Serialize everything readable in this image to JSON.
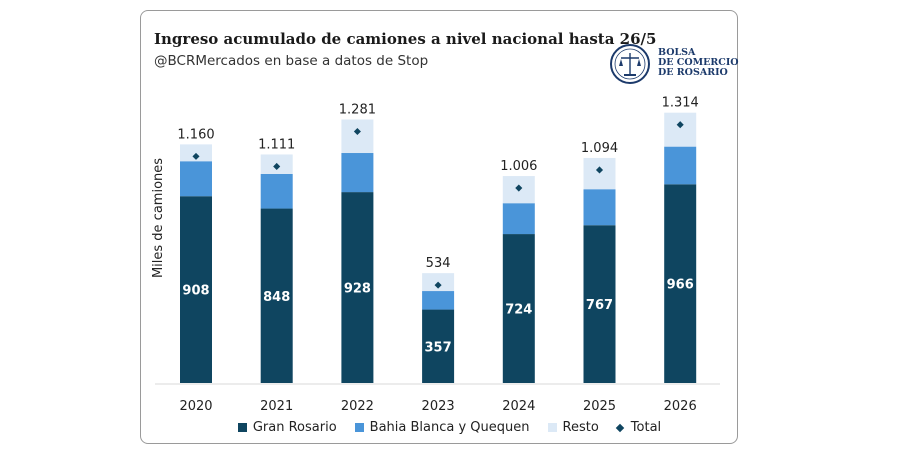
{
  "header": {
    "title": "Ingreso acumulado de camiones a nivel nacional hasta 26/5",
    "subtitle": "@BCRMercados en base a datos de Stop"
  },
  "logo": {
    "line1": "BOLSA",
    "line2": "DE COMERCIO",
    "line3": "DE ROSARIO"
  },
  "colors": {
    "gran_rosario": "#0f4560",
    "bahia_blanca": "#4a95d9",
    "resto": "#dce9f6",
    "total": "#0f4560"
  },
  "chart_data": {
    "type": "bar",
    "stacked": true,
    "categories": [
      "2020",
      "2021",
      "2022",
      "2023",
      "2024",
      "2025",
      "2026"
    ],
    "series": [
      {
        "name": "Gran Rosario",
        "values": [
          908,
          848,
          928,
          357,
          724,
          767,
          966
        ]
      },
      {
        "name": "Bahia Blanca y Quequen",
        "values": [
          170,
          168,
          190,
          90,
          150,
          175,
          183
        ]
      },
      {
        "name": "Resto",
        "values": [
          82,
          95,
          163,
          87,
          132,
          152,
          165
        ]
      }
    ],
    "totals": {
      "name": "Total",
      "values": [
        1160,
        1111,
        1281,
        534,
        1006,
        1094,
        1314
      ],
      "labels": [
        "1.160",
        "1.111",
        "1.281",
        "534",
        "1.006",
        "1.094",
        "1.314"
      ]
    },
    "segment_labels": [
      "908",
      "848",
      "928",
      "357",
      "724",
      "767",
      "966"
    ],
    "ylabel": "Miles de camiones",
    "ylim": [
      0,
      1400
    ],
    "grid": false,
    "legend_position": "bottom"
  }
}
